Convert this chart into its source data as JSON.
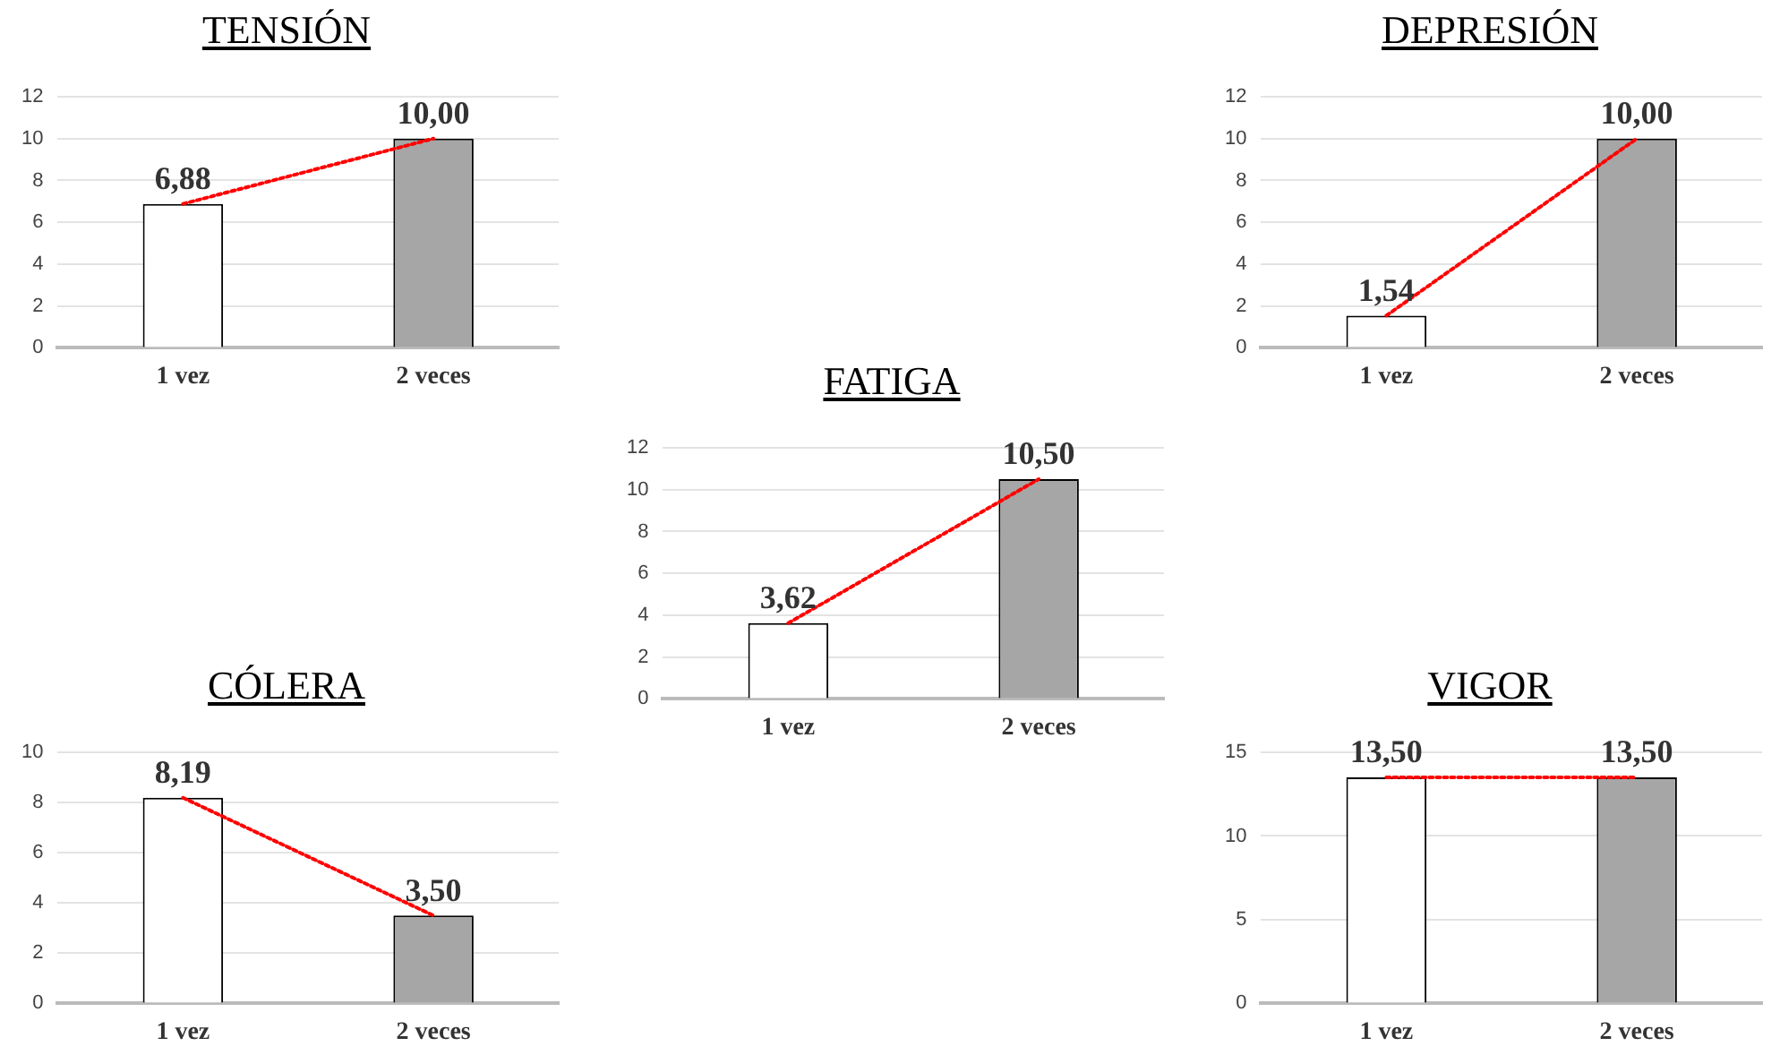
{
  "chart_data": [
    {
      "type": "bar",
      "title": "TENSIÓN",
      "categories": [
        "1 vez",
        "2 veces"
      ],
      "ylim": [
        0,
        12
      ],
      "yticks": [
        0,
        2,
        4,
        6,
        8,
        10,
        12
      ],
      "grid": "y",
      "legend": false,
      "series": [
        {
          "values": [
            6.88,
            10.0
          ],
          "colors": [
            "#ffffff",
            "#a6a6a6"
          ],
          "value_labels": [
            "6,88",
            "10,00"
          ]
        },
        {
          "type": "line",
          "values": [
            6.88,
            10.0
          ],
          "color": "#ff0000",
          "line_style": "dotted",
          "marker": "none"
        }
      ]
    },
    {
      "type": "bar",
      "title": "DEPRESIÓN",
      "categories": [
        "1 vez",
        "2 veces"
      ],
      "ylim": [
        0,
        12
      ],
      "yticks": [
        0,
        2,
        4,
        6,
        8,
        10,
        12
      ],
      "grid": "y",
      "legend": false,
      "series": [
        {
          "values": [
            1.54,
            10.0
          ],
          "colors": [
            "#ffffff",
            "#a6a6a6"
          ],
          "value_labels": [
            "1,54",
            "10,00"
          ]
        },
        {
          "type": "line",
          "values": [
            1.54,
            10.0
          ],
          "color": "#ff0000",
          "line_style": "dotted",
          "marker": "none"
        }
      ]
    },
    {
      "type": "bar",
      "title": "FATIGA",
      "categories": [
        "1 vez",
        "2 veces"
      ],
      "ylim": [
        0,
        12
      ],
      "yticks": [
        0,
        2,
        4,
        6,
        8,
        10,
        12
      ],
      "grid": "y",
      "legend": false,
      "series": [
        {
          "values": [
            3.62,
            10.5
          ],
          "colors": [
            "#ffffff",
            "#a6a6a6"
          ],
          "value_labels": [
            "3,62",
            "10,50"
          ]
        },
        {
          "type": "line",
          "values": [
            3.62,
            10.5
          ],
          "color": "#ff0000",
          "line_style": "dotted",
          "marker": "none"
        }
      ]
    },
    {
      "type": "bar",
      "title": "CÓLERA",
      "categories": [
        "1 vez",
        "2 veces"
      ],
      "ylim": [
        0,
        10
      ],
      "yticks": [
        0,
        2,
        4,
        6,
        8,
        10
      ],
      "grid": "y",
      "legend": false,
      "series": [
        {
          "values": [
            8.19,
            3.5
          ],
          "colors": [
            "#ffffff",
            "#a6a6a6"
          ],
          "value_labels": [
            "8,19",
            "3,50"
          ]
        },
        {
          "type": "line",
          "values": [
            8.19,
            3.5
          ],
          "color": "#ff0000",
          "line_style": "dotted",
          "marker": "none"
        }
      ]
    },
    {
      "type": "bar",
      "title": "VIGOR",
      "categories": [
        "1 vez",
        "2 veces"
      ],
      "ylim": [
        0,
        15
      ],
      "yticks": [
        0,
        5,
        10,
        15
      ],
      "grid": "y",
      "legend": false,
      "series": [
        {
          "values": [
            13.5,
            13.5
          ],
          "colors": [
            "#ffffff",
            "#a6a6a6"
          ],
          "value_labels": [
            "13,50",
            "13,50"
          ]
        },
        {
          "type": "line",
          "values": [
            13.5,
            13.5
          ],
          "color": "#ff0000",
          "line_style": "dotted",
          "marker": "none"
        }
      ]
    }
  ]
}
